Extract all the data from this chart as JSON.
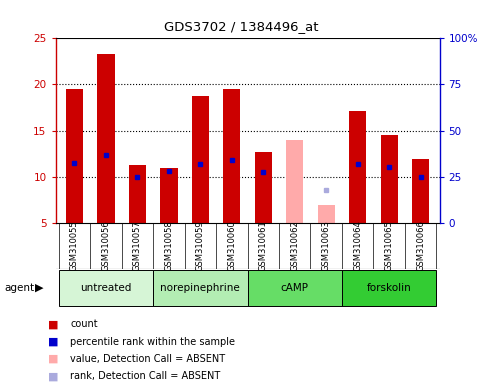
{
  "title": "GDS3702 / 1384496_at",
  "samples": [
    "GSM310055",
    "GSM310056",
    "GSM310057",
    "GSM310058",
    "GSM310059",
    "GSM310060",
    "GSM310061",
    "GSM310062",
    "GSM310063",
    "GSM310064",
    "GSM310065",
    "GSM310066"
  ],
  "count_values": [
    19.5,
    23.3,
    11.3,
    10.9,
    18.7,
    19.5,
    12.7,
    null,
    null,
    17.1,
    14.5,
    11.9
  ],
  "count_absent_values": [
    null,
    null,
    null,
    null,
    null,
    null,
    null,
    14.0,
    6.9,
    null,
    null,
    null
  ],
  "rank_values": [
    11.5,
    12.3,
    10.0,
    10.6,
    11.4,
    11.8,
    10.5,
    null,
    null,
    11.4,
    11.0,
    10.0
  ],
  "rank_absent_values": [
    null,
    null,
    null,
    null,
    null,
    null,
    null,
    null,
    8.6,
    null,
    null,
    null
  ],
  "ylim": [
    5,
    25
  ],
  "yticks_left": [
    5,
    10,
    15,
    20,
    25
  ],
  "yticks_right": [
    0,
    25,
    50,
    75,
    100
  ],
  "groups": [
    {
      "label": "untreated",
      "indices": [
        0,
        1,
        2
      ],
      "color": "#d6f5d6"
    },
    {
      "label": "norepinephrine",
      "indices": [
        3,
        4,
        5
      ],
      "color": "#b3edb3"
    },
    {
      "label": "cAMP",
      "indices": [
        6,
        7,
        8
      ],
      "color": "#66dd66"
    },
    {
      "label": "forskolin",
      "indices": [
        9,
        10,
        11
      ],
      "color": "#33cc33"
    }
  ],
  "bar_color": "#cc0000",
  "bar_absent_color": "#ffaaaa",
  "rank_color": "#0000cc",
  "rank_absent_color": "#aaaadd",
  "bg_color": "#d3d3d3",
  "plot_bg": "#ffffff",
  "bar_width": 0.55,
  "gridline_values": [
    10,
    15,
    20
  ],
  "agent_label": "agent"
}
